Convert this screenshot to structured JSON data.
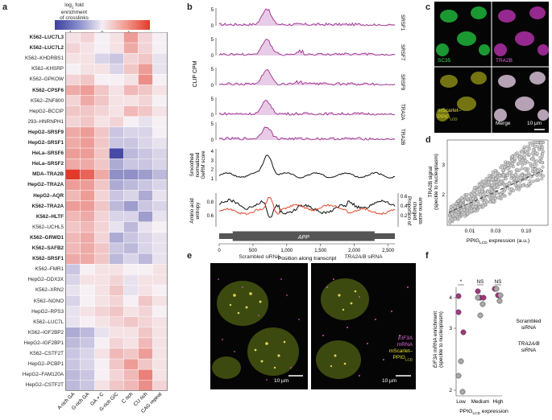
{
  "panels": {
    "a": "a",
    "b": "b",
    "c": "c",
    "d": "d",
    "e": "e",
    "f": "f"
  },
  "a": {
    "legend_title_1": "log",
    "legend_title_sub": "2",
    "legend_title_2": " fold",
    "legend_title_3": "enrichment",
    "legend_title_4": "of crosslinks",
    "legend_ticks": [
      "−1",
      "0",
      "1"
    ],
    "columns": [
      "A-rich GA",
      "G-rich GA",
      "GA + C",
      "G-rich G/C",
      "C rich",
      "CU rich",
      "CAG repeat"
    ],
    "rows": [
      {
        "label": "K562–LUC7L3",
        "bold": true,
        "values": [
          0.1,
          0.2,
          0.0,
          0.1,
          0.6,
          0.2,
          0.0
        ]
      },
      {
        "label": "K562–LUC7L2",
        "bold": true,
        "values": [
          0.2,
          0.1,
          0.0,
          0.1,
          0.5,
          0.2,
          0.0
        ]
      },
      {
        "label": "K562–KHDRBS1",
        "bold": false,
        "values": [
          0.1,
          0.1,
          -0.2,
          -0.3,
          0.2,
          0.3,
          -0.1
        ]
      },
      {
        "label": "K562–KHSRP",
        "bold": false,
        "values": [
          0.0,
          0.1,
          0.1,
          -0.2,
          0.3,
          0.6,
          -0.1
        ]
      },
      {
        "label": "K562–GPKOW",
        "bold": false,
        "values": [
          0.2,
          0.3,
          0.0,
          0.0,
          0.1,
          0.7,
          0.0
        ]
      },
      {
        "label": "K562–CPSF6",
        "bold": true,
        "values": [
          0.5,
          0.6,
          0.3,
          0.1,
          0.4,
          0.3,
          0.1
        ]
      },
      {
        "label": "K562–ZNF800",
        "bold": false,
        "values": [
          0.2,
          0.5,
          0.3,
          0.1,
          0.1,
          0.2,
          0.0
        ]
      },
      {
        "label": "HepG2–BCCIP",
        "bold": false,
        "values": [
          0.3,
          0.3,
          0.2,
          0.1,
          0.4,
          0.3,
          0.1
        ]
      },
      {
        "label": "293–HNRNPH1",
        "bold": false,
        "values": [
          0.2,
          0.3,
          0.1,
          0.2,
          0.0,
          -0.1,
          0.0
        ]
      },
      {
        "label": "HepG2–SRSF9",
        "bold": true,
        "values": [
          0.5,
          0.6,
          0.3,
          -0.3,
          -0.2,
          -0.2,
          0.0
        ]
      },
      {
        "label": "HepG2–SRSF1",
        "bold": true,
        "values": [
          0.5,
          0.6,
          0.3,
          -0.3,
          -0.3,
          -0.2,
          -0.1
        ]
      },
      {
        "label": "HeLa–SRSF6",
        "bold": true,
        "values": [
          0.6,
          0.6,
          0.3,
          -1.2,
          -0.4,
          -0.3,
          -0.2
        ]
      },
      {
        "label": "HeLa–SRSF2",
        "bold": true,
        "values": [
          0.5,
          0.5,
          0.3,
          -0.5,
          -0.3,
          -0.3,
          -0.2
        ]
      },
      {
        "label": "MDA–TRA2B",
        "bold": true,
        "values": [
          1.3,
          1.0,
          0.5,
          -0.7,
          -0.7,
          -0.6,
          -0.4
        ]
      },
      {
        "label": "HepG2–TRA2A",
        "bold": true,
        "values": [
          0.6,
          0.6,
          0.3,
          -0.5,
          -0.4,
          -0.3,
          -0.2
        ]
      },
      {
        "label": "HepG2–AQR",
        "bold": true,
        "values": [
          0.4,
          0.6,
          0.2,
          -0.3,
          -0.2,
          -0.5,
          -0.1
        ]
      },
      {
        "label": "K562–TRA2A",
        "bold": true,
        "values": [
          0.6,
          0.6,
          0.3,
          -0.4,
          -0.6,
          -0.3,
          -0.2
        ]
      },
      {
        "label": "K562–HLTF",
        "bold": true,
        "values": [
          0.4,
          0.5,
          0.2,
          -0.2,
          -0.2,
          -0.6,
          -0.1
        ]
      },
      {
        "label": "K562–UCHL5",
        "bold": false,
        "values": [
          0.3,
          0.4,
          0.2,
          -0.1,
          -0.4,
          -0.1,
          0.0
        ]
      },
      {
        "label": "K562–GRWD1",
        "bold": true,
        "values": [
          0.4,
          0.5,
          0.2,
          -0.5,
          -0.3,
          -0.2,
          -0.1
        ]
      },
      {
        "label": "K562–SAFB2",
        "bold": true,
        "values": [
          0.4,
          0.5,
          0.3,
          -0.3,
          -0.4,
          -0.2,
          -0.1
        ]
      },
      {
        "label": "K562–SRSF1",
        "bold": true,
        "values": [
          0.5,
          0.5,
          0.3,
          -0.4,
          -0.2,
          -0.4,
          -0.1
        ]
      },
      {
        "label": "K562–FMR1",
        "bold": false,
        "values": [
          -0.3,
          0.0,
          0.1,
          0.1,
          0.0,
          0.0,
          0.1
        ]
      },
      {
        "label": "HepG2–DDX3X",
        "bold": false,
        "values": [
          -0.2,
          0.1,
          0.1,
          0.2,
          -0.1,
          0.1,
          0.1
        ]
      },
      {
        "label": "K562–XRN2",
        "bold": false,
        "values": [
          -0.1,
          0.0,
          0.1,
          0.3,
          -0.1,
          0.1,
          0.0
        ]
      },
      {
        "label": "K562–NONO",
        "bold": false,
        "values": [
          -0.2,
          0.0,
          0.1,
          0.2,
          0.0,
          0.3,
          0.1
        ]
      },
      {
        "label": "HepG2–RPS3",
        "bold": false,
        "values": [
          -0.1,
          0.1,
          0.2,
          0.3,
          0.1,
          0.2,
          0.0
        ]
      },
      {
        "label": "K562–LUC7L",
        "bold": false,
        "values": [
          -0.1,
          0.0,
          0.1,
          0.2,
          0.3,
          0.2,
          0.1
        ]
      },
      {
        "label": "K562–IGF2BP2",
        "bold": false,
        "values": [
          -0.5,
          -0.4,
          -0.1,
          0.1,
          0.1,
          0.3,
          0.1
        ]
      },
      {
        "label": "HepG2–IGF2BP1",
        "bold": false,
        "values": [
          -0.4,
          -0.3,
          0.0,
          0.2,
          0.1,
          0.4,
          0.1
        ]
      },
      {
        "label": "K562–CSTF2T",
        "bold": false,
        "values": [
          -0.3,
          -0.2,
          0.1,
          0.4,
          0.3,
          0.6,
          0.1
        ]
      },
      {
        "label": "HepG2–PCBP1",
        "bold": false,
        "values": [
          -0.3,
          -0.2,
          0.0,
          0.3,
          0.6,
          0.3,
          0.1
        ]
      },
      {
        "label": "HepG2–FAM120A",
        "bold": false,
        "values": [
          -0.4,
          -0.3,
          0.0,
          0.2,
          0.4,
          0.8,
          0.1
        ]
      },
      {
        "label": "HepG2–CSTF2T",
        "bold": false,
        "values": [
          -0.4,
          -0.3,
          0.1,
          0.3,
          0.4,
          0.7,
          0.2
        ]
      }
    ]
  },
  "b": {
    "ylabel_clip": "CLIP CPM",
    "tracks": [
      "SRSF1",
      "SRSF7",
      "SRSF9",
      "TRA2A",
      "TRA2B"
    ],
    "track_ticks": [
      [
        "5",
        "0"
      ],
      [
        "5",
        "0"
      ],
      [
        "5",
        "0"
      ],
      [
        "5",
        "0"
      ],
      [
        "5",
        "0"
      ]
    ],
    "germ_label": [
      "Smoothed",
      "normalized",
      "GeRM score"
    ],
    "germ_ticks": [
      "4",
      "3",
      "2",
      "1"
    ],
    "entropy_label": [
      "Amino acid",
      "entropy"
    ],
    "entropy_ticks": [
      "0.8",
      "0.6"
    ],
    "charged_label": [
      "Proportion of",
      "charged",
      "amino acids"
    ],
    "charged_ticks": [
      "0.6",
      "0.4",
      "0.2"
    ],
    "gene": "APP",
    "x_ticks": [
      "0",
      "500",
      "1,000",
      "1,500",
      "2,000",
      "2,500"
    ],
    "xlabel": "Position along transcript"
  },
  "c": {
    "labels": {
      "sc35": "SC35",
      "tra2b": "TRA2B",
      "mscarlet": "mScarlet–",
      "ppig": "PPIG",
      "ppig_sub": "LCD",
      "merge": "Merge"
    },
    "scale": "10 μm"
  },
  "d": {
    "ylabel": [
      "TRA2B signal",
      "(speckle to nucleoplasm)"
    ],
    "yticks": [
      "3",
      "2"
    ],
    "xticks": [
      "0.01",
      "0.03",
      "0.10"
    ],
    "xlabel_main": "PPIG",
    "xlabel_sub": "LCD",
    "xlabel_rest": " expression (a.u.)"
  },
  "e": {
    "title_left": "Scrambled siRNA",
    "title_right_italic": "TRA2A/B",
    "title_right_rest": " siRNA",
    "legend": {
      "eif3a": "EIF3A",
      "mrna": "mRNA",
      "mscarlet": "mScarlet–",
      "ppig": "PPIG",
      "ppig_sub": "LCD"
    },
    "scale": "10 μm"
  },
  "f": {
    "ylabel_italic": "EIF3A",
    "ylabel_rest": " mRNA enrichment",
    "ylabel_2": "(speckle to nucleoplasm)",
    "yticks": [
      "4",
      "3",
      "2"
    ],
    "xticks": [
      "Low",
      "Medium",
      "High"
    ],
    "xlabel_main": "PPIG",
    "xlabel_sub": "LCD",
    "xlabel_rest": " expression",
    "sig": [
      "*",
      "NS",
      "NS"
    ],
    "legend_scrambled": [
      "Scrambled",
      "siRNA"
    ],
    "legend_tra2_italic": "TRA2A/B",
    "legend_tra2_rest": "siRNA",
    "colors": {
      "scrambled": "#a8a8a8",
      "tra2": "#a3387f"
    }
  }
}
